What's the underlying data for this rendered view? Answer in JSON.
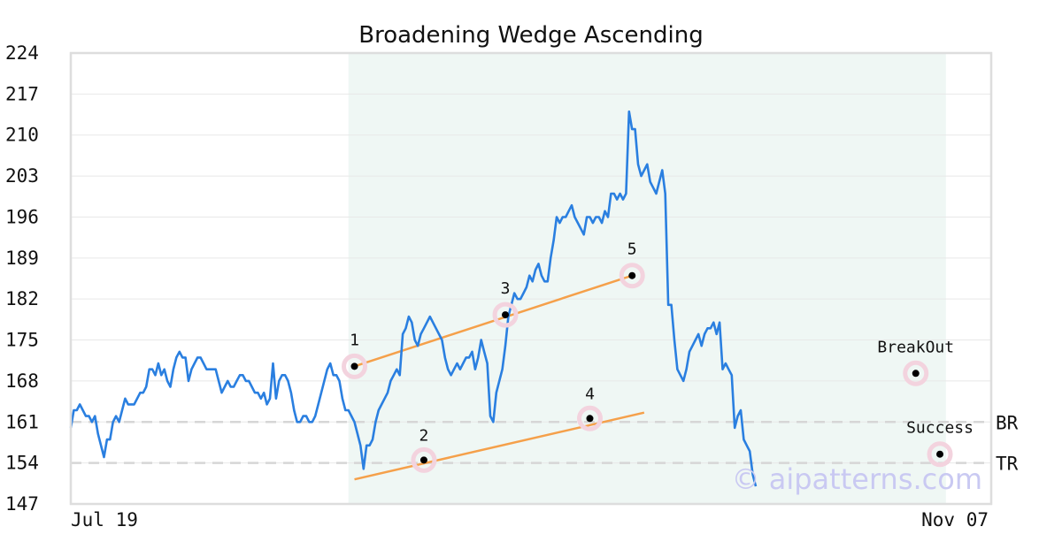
{
  "chart_data": {
    "type": "line",
    "title": "Broadening Wedge Ascending",
    "xlabel": "",
    "ylabel": "",
    "x_tick_labels": [
      "Jul 19",
      "Nov 07"
    ],
    "y_ticks": [
      147,
      154,
      161,
      168,
      175,
      182,
      189,
      196,
      203,
      210,
      217,
      224
    ],
    "ylim": [
      147,
      224
    ],
    "grid": true,
    "legend": "none",
    "x_index_range": [
      0,
      152
    ],
    "series": [
      {
        "values": [
          160,
          163,
          163,
          164,
          163,
          162,
          162,
          161,
          162,
          159,
          157,
          155,
          158,
          158,
          161,
          162,
          161,
          163,
          165,
          164,
          164,
          164,
          165,
          166,
          166,
          167,
          170,
          170,
          169,
          171,
          169,
          170,
          168,
          167,
          170,
          172,
          173,
          172,
          172,
          168,
          170,
          171,
          172,
          172,
          171,
          170,
          170,
          170,
          170,
          168,
          166,
          167,
          168,
          167,
          167,
          168,
          169,
          169,
          168,
          168,
          167,
          166,
          166,
          165,
          166,
          164,
          165,
          171,
          165,
          168,
          169,
          169,
          168,
          166,
          163,
          161,
          161,
          162,
          162,
          161,
          161,
          162,
          164,
          166,
          168,
          170,
          171,
          169,
          169,
          168,
          165,
          163,
          163,
          162,
          161,
          159,
          157,
          153,
          157,
          157,
          158,
          161,
          163,
          164,
          165,
          166,
          168,
          169,
          170,
          169,
          176,
          177,
          179,
          178,
          175,
          174,
          176,
          177,
          178,
          179,
          178,
          177,
          176,
          175,
          172,
          170,
          169,
          170,
          171,
          170,
          171,
          172,
          172,
          173,
          170,
          172,
          175,
          173,
          171,
          162,
          161,
          166,
          168,
          170,
          174,
          179,
          181,
          183,
          182,
          182,
          183,
          184,
          186,
          185
        ],
        "note": ""
      }
    ],
    "full_series_values": [
      160,
      163,
      163,
      164,
      163,
      162,
      162,
      161,
      162,
      159,
      157,
      155,
      158,
      158,
      161,
      162,
      161,
      163,
      165,
      164,
      164,
      164,
      165,
      166,
      166,
      167,
      170,
      170,
      169,
      171,
      169,
      170,
      168,
      167,
      170,
      172,
      173,
      172,
      172,
      168,
      170,
      171,
      172,
      172,
      171,
      170,
      170,
      170,
      170,
      168,
      166,
      167,
      168,
      167,
      167,
      168,
      169,
      169,
      168,
      168,
      167,
      166,
      166,
      165,
      166,
      164,
      165,
      171,
      165,
      168,
      169,
      169,
      168,
      166,
      163,
      161,
      161,
      162,
      162,
      161,
      161,
      162,
      164,
      166,
      168,
      170,
      171,
      169,
      169,
      168,
      165,
      163,
      163,
      162,
      161,
      159,
      157,
      153,
      157,
      157,
      158,
      161,
      163,
      164,
      165,
      166,
      168,
      169,
      170,
      169,
      176,
      177,
      179,
      178,
      175,
      174,
      176,
      177,
      178,
      179,
      178,
      177,
      176,
      175,
      172,
      170,
      169,
      170,
      171,
      170,
      171,
      172,
      172,
      173,
      170,
      172,
      175,
      173,
      171,
      162,
      161,
      166,
      168,
      170,
      174,
      179,
      181,
      183,
      182,
      182,
      183,
      184,
      186,
      185,
      187,
      188,
      186,
      185,
      185,
      189,
      192,
      196,
      195,
      196,
      196,
      197,
      198,
      196,
      195,
      194,
      193,
      196,
      196,
      195,
      196,
      196,
      195,
      197,
      196,
      200,
      200,
      199,
      200,
      199,
      200,
      214,
      211,
      211,
      205,
      203,
      204,
      205,
      202,
      201,
      200,
      202,
      204,
      200,
      181,
      181,
      175,
      170,
      169,
      168,
      170,
      173,
      174,
      175,
      176,
      174,
      176,
      177,
      177,
      178,
      176,
      178,
      170,
      171,
      170,
      169,
      160,
      162,
      163,
      158,
      157,
      156,
      152,
      150
    ],
    "shaded_region": {
      "start_index": 92,
      "end_index": 290
    },
    "levels": [
      {
        "name": "BR",
        "value": 161
      },
      {
        "name": "TR",
        "value": 154
      }
    ],
    "points": [
      {
        "label": "1",
        "x": 94,
        "y": 170.5
      },
      {
        "label": "2",
        "x": 117,
        "y": 154.5
      },
      {
        "label": "3",
        "x": 144,
        "y": 179.3
      },
      {
        "label": "4",
        "x": 172,
        "y": 161.6
      },
      {
        "label": "5",
        "x": 186,
        "y": 186.0
      },
      {
        "label": "BreakOut",
        "x": 280,
        "y": 169.3
      },
      {
        "label": "Success",
        "x": 288,
        "y": 155.5
      }
    ],
    "trendlines": [
      {
        "name": "upper",
        "from": [
          94,
          170.5
        ],
        "to": [
          186,
          186.0
        ]
      },
      {
        "name": "lower",
        "from": [
          94,
          151.2
        ],
        "to": [
          190,
          162.6
        ]
      }
    ],
    "x_index_max": 305
  },
  "watermark": "© aipatterns.com",
  "colors": {
    "line": "#2a7fe0",
    "trend": "#f5a04a",
    "shade": "#eff7f4",
    "grid": "#e8e8e8",
    "level": "#d6d6d6",
    "frame": "#dddddd",
    "halo": "#f3d3de"
  }
}
